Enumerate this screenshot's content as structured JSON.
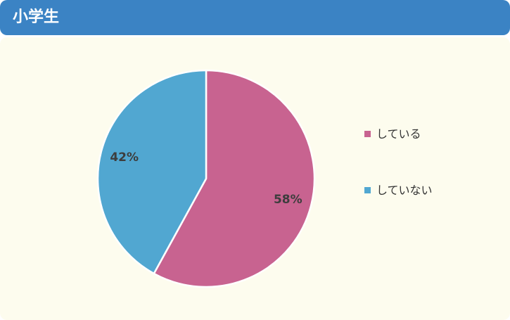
{
  "header": {
    "title": "小学生",
    "color": "#3b83c4"
  },
  "panel": {
    "background": "#fdfcee"
  },
  "chart_data": {
    "type": "pie",
    "title": "小学生",
    "slices": [
      {
        "label": "している",
        "value": 58,
        "display": "58%",
        "color": "#c86390"
      },
      {
        "label": "していない",
        "value": 42,
        "display": "42%",
        "color": "#51a7d1"
      }
    ],
    "start_angle": "12 o'clock",
    "direction": "clockwise",
    "legend_position": "right"
  }
}
